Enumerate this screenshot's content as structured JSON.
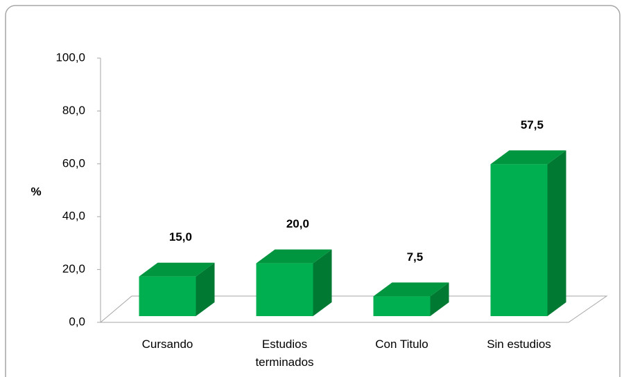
{
  "chart_data": {
    "type": "bar3d",
    "y_label": "%",
    "categories": [
      "Cursando",
      "Estudios terminados",
      "Con Titulo",
      "Sin estudios"
    ],
    "values": [
      15.0,
      20.0,
      7.5,
      57.5
    ],
    "value_labels": [
      "15,0",
      "20,0",
      "7,5",
      "57,5"
    ],
    "color": "#00b050",
    "ylim": [
      0,
      100
    ],
    "yticks": [
      {
        "value": 0,
        "label": "0,0"
      },
      {
        "value": 20,
        "label": "20,0"
      },
      {
        "value": 40,
        "label": "40,0"
      },
      {
        "value": 60,
        "label": "60,0"
      },
      {
        "value": 80,
        "label": "80,0"
      },
      {
        "value": 100,
        "label": "100,0"
      }
    ]
  }
}
